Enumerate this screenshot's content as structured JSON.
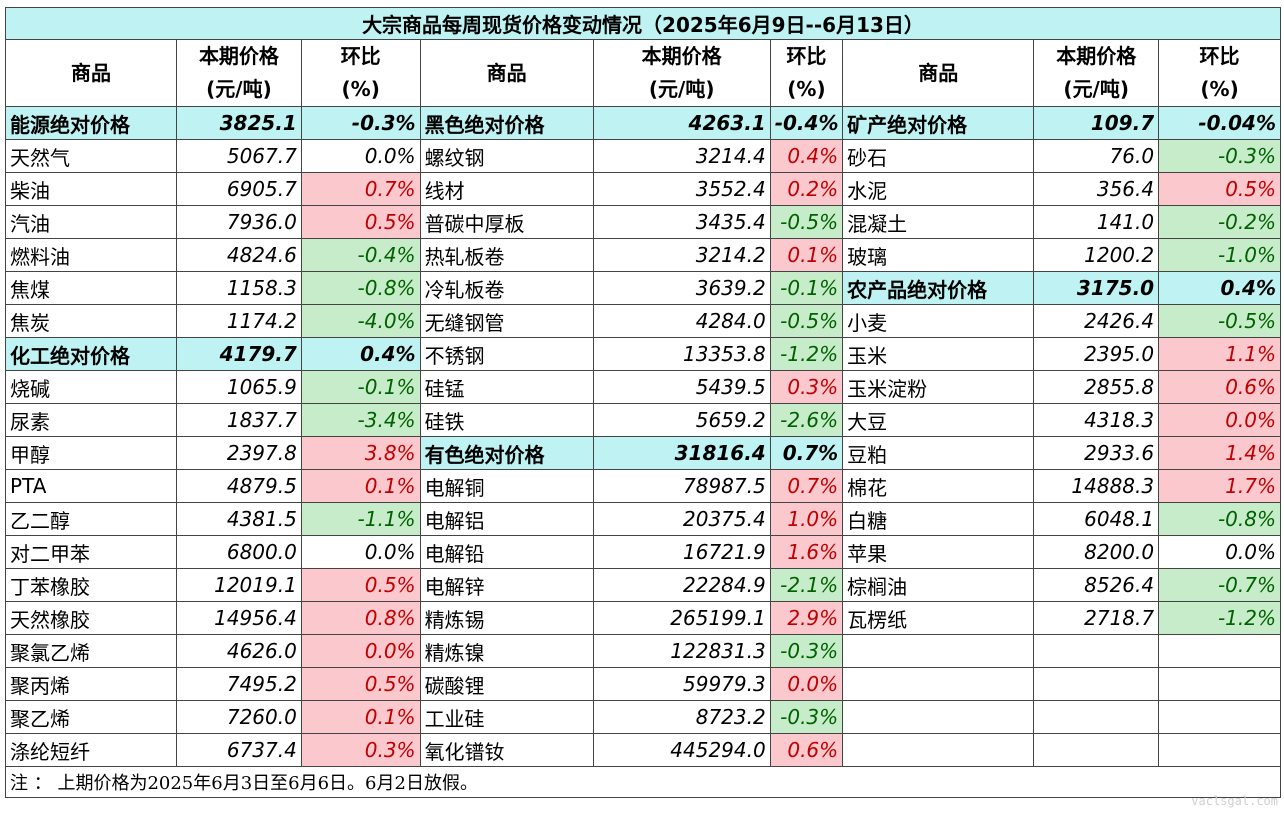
{
  "title": "大宗商品每周现货价格变动情况（2025年6月9日--6月13日）",
  "headers": {
    "product": "商品",
    "price_line1": "本期价格",
    "price_line2": "(元/吨)",
    "change_line1": "环比",
    "change_line2": "(%)"
  },
  "colors": {
    "group_bg": "#bff3f3",
    "up_bg": "#fac8cd",
    "up_text": "#c00000",
    "down_bg": "#c7ecc9",
    "down_text": "#006100"
  },
  "rows": [
    {
      "c1": {
        "name": "能源绝对价格",
        "price": "3825.1",
        "change": "-0.3%",
        "group": true
      },
      "c2": {
        "name": "黑色绝对价格",
        "price": "4263.1",
        "change": "-0.4%",
        "group": true
      },
      "c3": {
        "name": "矿产绝对价格",
        "price": "109.7",
        "change": "-0.04%",
        "group": true
      }
    },
    {
      "c1": {
        "name": "天然气",
        "price": "5067.7",
        "change": "0.0%"
      },
      "c2": {
        "name": "螺纹钢",
        "price": "3214.4",
        "change": "0.4%",
        "trend": "up"
      },
      "c3": {
        "name": "砂石",
        "price": "76.0",
        "change": "-0.3%",
        "trend": "down"
      }
    },
    {
      "c1": {
        "name": "柴油",
        "price": "6905.7",
        "change": "0.7%",
        "trend": "up"
      },
      "c2": {
        "name": "线材",
        "price": "3552.4",
        "change": "0.2%",
        "trend": "up"
      },
      "c3": {
        "name": "水泥",
        "price": "356.4",
        "change": "0.5%",
        "trend": "up"
      }
    },
    {
      "c1": {
        "name": "汽油",
        "price": "7936.0",
        "change": "0.5%",
        "trend": "up"
      },
      "c2": {
        "name": "普碳中厚板",
        "price": "3435.4",
        "change": "-0.5%",
        "trend": "down"
      },
      "c3": {
        "name": "混凝土",
        "price": "141.0",
        "change": "-0.2%",
        "trend": "down"
      }
    },
    {
      "c1": {
        "name": "燃料油",
        "price": "4824.6",
        "change": "-0.4%",
        "trend": "down"
      },
      "c2": {
        "name": "热轧板卷",
        "price": "3214.2",
        "change": "0.1%",
        "trend": "up"
      },
      "c3": {
        "name": "玻璃",
        "price": "1200.2",
        "change": "-1.0%",
        "trend": "down"
      }
    },
    {
      "c1": {
        "name": "焦煤",
        "price": "1158.3",
        "change": "-0.8%",
        "trend": "down"
      },
      "c2": {
        "name": "冷轧板卷",
        "price": "3639.2",
        "change": "-0.1%",
        "trend": "down"
      },
      "c3": {
        "name": "农产品绝对价格",
        "price": "3175.0",
        "change": "0.4%",
        "group": true
      }
    },
    {
      "c1": {
        "name": "焦炭",
        "price": "1174.2",
        "change": "-4.0%",
        "trend": "down"
      },
      "c2": {
        "name": "无缝钢管",
        "price": "4284.0",
        "change": "-0.5%",
        "trend": "down"
      },
      "c3": {
        "name": "小麦",
        "price": "2426.4",
        "change": "-0.5%",
        "trend": "down"
      }
    },
    {
      "c1": {
        "name": "化工绝对价格",
        "price": "4179.7",
        "change": "0.4%",
        "group": true
      },
      "c2": {
        "name": "不锈钢",
        "price": "13353.8",
        "change": "-1.2%",
        "trend": "down"
      },
      "c3": {
        "name": "玉米",
        "price": "2395.0",
        "change": "1.1%",
        "trend": "up"
      }
    },
    {
      "c1": {
        "name": "烧碱",
        "price": "1065.9",
        "change": "-0.1%",
        "trend": "down"
      },
      "c2": {
        "name": "硅锰",
        "price": "5439.5",
        "change": "0.3%",
        "trend": "up"
      },
      "c3": {
        "name": "玉米淀粉",
        "price": "2855.8",
        "change": "0.6%",
        "trend": "up"
      }
    },
    {
      "c1": {
        "name": "尿素",
        "price": "1837.7",
        "change": "-3.4%",
        "trend": "down"
      },
      "c2": {
        "name": "硅铁",
        "price": "5659.2",
        "change": "-2.6%",
        "trend": "down"
      },
      "c3": {
        "name": "大豆",
        "price": "4318.3",
        "change": "0.0%",
        "trend": "up"
      }
    },
    {
      "c1": {
        "name": "甲醇",
        "price": "2397.8",
        "change": "3.8%",
        "trend": "up"
      },
      "c2": {
        "name": "有色绝对价格",
        "price": "31816.4",
        "change": "0.7%",
        "group": true
      },
      "c3": {
        "name": "豆粕",
        "price": "2933.6",
        "change": "1.4%",
        "trend": "up"
      }
    },
    {
      "c1": {
        "name": "PTA",
        "price": "4879.5",
        "change": "0.1%",
        "trend": "up"
      },
      "c2": {
        "name": "电解铜",
        "price": "78987.5",
        "change": "0.7%",
        "trend": "up"
      },
      "c3": {
        "name": "棉花",
        "price": "14888.3",
        "change": "1.7%",
        "trend": "up"
      }
    },
    {
      "c1": {
        "name": "乙二醇",
        "price": "4381.5",
        "change": "-1.1%",
        "trend": "down"
      },
      "c2": {
        "name": "电解铝",
        "price": "20375.4",
        "change": "1.0%",
        "trend": "up"
      },
      "c3": {
        "name": "白糖",
        "price": "6048.1",
        "change": "-0.8%",
        "trend": "down"
      }
    },
    {
      "c1": {
        "name": "对二甲苯",
        "price": "6800.0",
        "change": "0.0%"
      },
      "c2": {
        "name": "电解铅",
        "price": "16721.9",
        "change": "1.6%",
        "trend": "up"
      },
      "c3": {
        "name": "苹果",
        "price": "8200.0",
        "change": "0.0%"
      }
    },
    {
      "c1": {
        "name": "丁苯橡胶",
        "price": "12019.1",
        "change": "0.5%",
        "trend": "up"
      },
      "c2": {
        "name": "电解锌",
        "price": "22284.9",
        "change": "-2.1%",
        "trend": "down"
      },
      "c3": {
        "name": "棕榈油",
        "price": "8526.4",
        "change": "-0.7%",
        "trend": "down"
      }
    },
    {
      "c1": {
        "name": "天然橡胶",
        "price": "14956.4",
        "change": "0.8%",
        "trend": "up"
      },
      "c2": {
        "name": "精炼锡",
        "price": "265199.1",
        "change": "2.9%",
        "trend": "up"
      },
      "c3": {
        "name": "瓦楞纸",
        "price": "2718.7",
        "change": "-1.2%",
        "trend": "down"
      }
    },
    {
      "c1": {
        "name": "聚氯乙烯",
        "price": "4626.0",
        "change": "0.0%",
        "trend": "up"
      },
      "c2": {
        "name": "精炼镍",
        "price": "122831.3",
        "change": "-0.3%",
        "trend": "down"
      },
      "c3": {
        "name": "",
        "price": "",
        "change": ""
      }
    },
    {
      "c1": {
        "name": "聚丙烯",
        "price": "7495.2",
        "change": "0.5%",
        "trend": "up"
      },
      "c2": {
        "name": "碳酸锂",
        "price": "59979.3",
        "change": "0.0%",
        "trend": "up"
      },
      "c3": {
        "name": "",
        "price": "",
        "change": ""
      }
    },
    {
      "c1": {
        "name": "聚乙烯",
        "price": "7260.0",
        "change": "0.1%",
        "trend": "up"
      },
      "c2": {
        "name": "工业硅",
        "price": "8723.2",
        "change": "-0.3%",
        "trend": "down"
      },
      "c3": {
        "name": "",
        "price": "",
        "change": ""
      }
    },
    {
      "c1": {
        "name": "涤纶短纤",
        "price": "6737.4",
        "change": "0.3%",
        "trend": "up"
      },
      "c2": {
        "name": "氧化镨钕",
        "price": "445294.0",
        "change": "0.6%",
        "trend": "up"
      },
      "c3": {
        "name": "",
        "price": "",
        "change": ""
      }
    }
  ],
  "note": "注 ： 上期价格为2025年6月3日至6月6日。6月2日放假。",
  "watermark": "vaclsgal.com"
}
